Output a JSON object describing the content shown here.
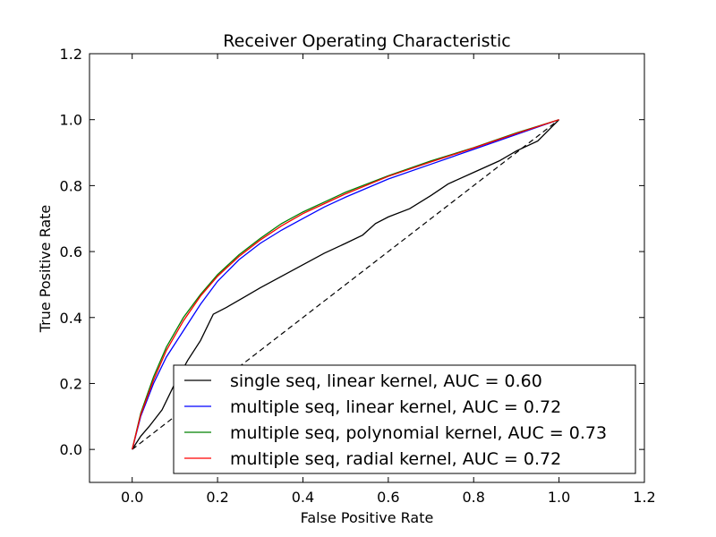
{
  "chart_data": {
    "type": "line",
    "title": "Receiver Operating Characteristic",
    "xlabel": "False Positive Rate",
    "ylabel": "True Positive Rate",
    "xlim": [
      -0.1,
      1.2
    ],
    "ylim": [
      -0.1,
      1.2
    ],
    "xticks": [
      "0.0",
      "0.2",
      "0.4",
      "0.6",
      "0.8",
      "1.0",
      "1.2"
    ],
    "yticks": [
      "0.0",
      "0.2",
      "0.4",
      "0.6",
      "0.8",
      "1.0",
      "1.2"
    ],
    "grid": false,
    "legend_position": "lower-right",
    "series": [
      {
        "name": "single seq, linear kernel, AUC = 0.60",
        "color": "#000000",
        "dash": "solid",
        "points": [
          [
            0,
            0
          ],
          [
            0.02,
            0.04
          ],
          [
            0.04,
            0.07
          ],
          [
            0.07,
            0.12
          ],
          [
            0.1,
            0.2
          ],
          [
            0.13,
            0.27
          ],
          [
            0.16,
            0.33
          ],
          [
            0.19,
            0.41
          ],
          [
            0.22,
            0.43
          ],
          [
            0.26,
            0.46
          ],
          [
            0.3,
            0.49
          ],
          [
            0.35,
            0.525
          ],
          [
            0.4,
            0.56
          ],
          [
            0.45,
            0.595
          ],
          [
            0.5,
            0.625
          ],
          [
            0.54,
            0.65
          ],
          [
            0.57,
            0.685
          ],
          [
            0.6,
            0.705
          ],
          [
            0.65,
            0.73
          ],
          [
            0.7,
            0.77
          ],
          [
            0.74,
            0.805
          ],
          [
            0.8,
            0.84
          ],
          [
            0.86,
            0.875
          ],
          [
            0.9,
            0.905
          ],
          [
            0.95,
            0.935
          ],
          [
            1.0,
            1.0
          ]
        ]
      },
      {
        "name": "multiple seq, linear kernel, AUC = 0.72",
        "color": "#0000ff",
        "dash": "solid",
        "points": [
          [
            0,
            0
          ],
          [
            0.02,
            0.1
          ],
          [
            0.05,
            0.2
          ],
          [
            0.08,
            0.28
          ],
          [
            0.12,
            0.36
          ],
          [
            0.16,
            0.44
          ],
          [
            0.2,
            0.51
          ],
          [
            0.25,
            0.575
          ],
          [
            0.3,
            0.625
          ],
          [
            0.35,
            0.665
          ],
          [
            0.4,
            0.7
          ],
          [
            0.45,
            0.735
          ],
          [
            0.5,
            0.765
          ],
          [
            0.6,
            0.82
          ],
          [
            0.7,
            0.865
          ],
          [
            0.8,
            0.91
          ],
          [
            0.9,
            0.955
          ],
          [
            1.0,
            1.0
          ]
        ]
      },
      {
        "name": "multiple seq, polynomial kernel, AUC = 0.73",
        "color": "#008000",
        "dash": "solid",
        "points": [
          [
            0,
            0
          ],
          [
            0.02,
            0.11
          ],
          [
            0.05,
            0.22
          ],
          [
            0.08,
            0.31
          ],
          [
            0.12,
            0.4
          ],
          [
            0.16,
            0.47
          ],
          [
            0.2,
            0.53
          ],
          [
            0.25,
            0.59
          ],
          [
            0.3,
            0.64
          ],
          [
            0.35,
            0.685
          ],
          [
            0.4,
            0.72
          ],
          [
            0.45,
            0.75
          ],
          [
            0.5,
            0.78
          ],
          [
            0.6,
            0.83
          ],
          [
            0.7,
            0.875
          ],
          [
            0.8,
            0.915
          ],
          [
            0.9,
            0.96
          ],
          [
            1.0,
            1.0
          ]
        ]
      },
      {
        "name": "multiple seq, radial kernel, AUC = 0.72",
        "color": "#ff0000",
        "dash": "solid",
        "points": [
          [
            0,
            0
          ],
          [
            0.02,
            0.105
          ],
          [
            0.05,
            0.21
          ],
          [
            0.08,
            0.3
          ],
          [
            0.12,
            0.39
          ],
          [
            0.16,
            0.465
          ],
          [
            0.2,
            0.525
          ],
          [
            0.25,
            0.585
          ],
          [
            0.3,
            0.635
          ],
          [
            0.35,
            0.678
          ],
          [
            0.4,
            0.715
          ],
          [
            0.45,
            0.745
          ],
          [
            0.5,
            0.775
          ],
          [
            0.6,
            0.828
          ],
          [
            0.7,
            0.872
          ],
          [
            0.8,
            0.914
          ],
          [
            0.9,
            0.958
          ],
          [
            1.0,
            1.0
          ]
        ]
      }
    ],
    "reference_line": {
      "color": "#000000",
      "dash": "dashed",
      "points": [
        [
          0,
          0
        ],
        [
          1,
          1
        ]
      ]
    }
  }
}
